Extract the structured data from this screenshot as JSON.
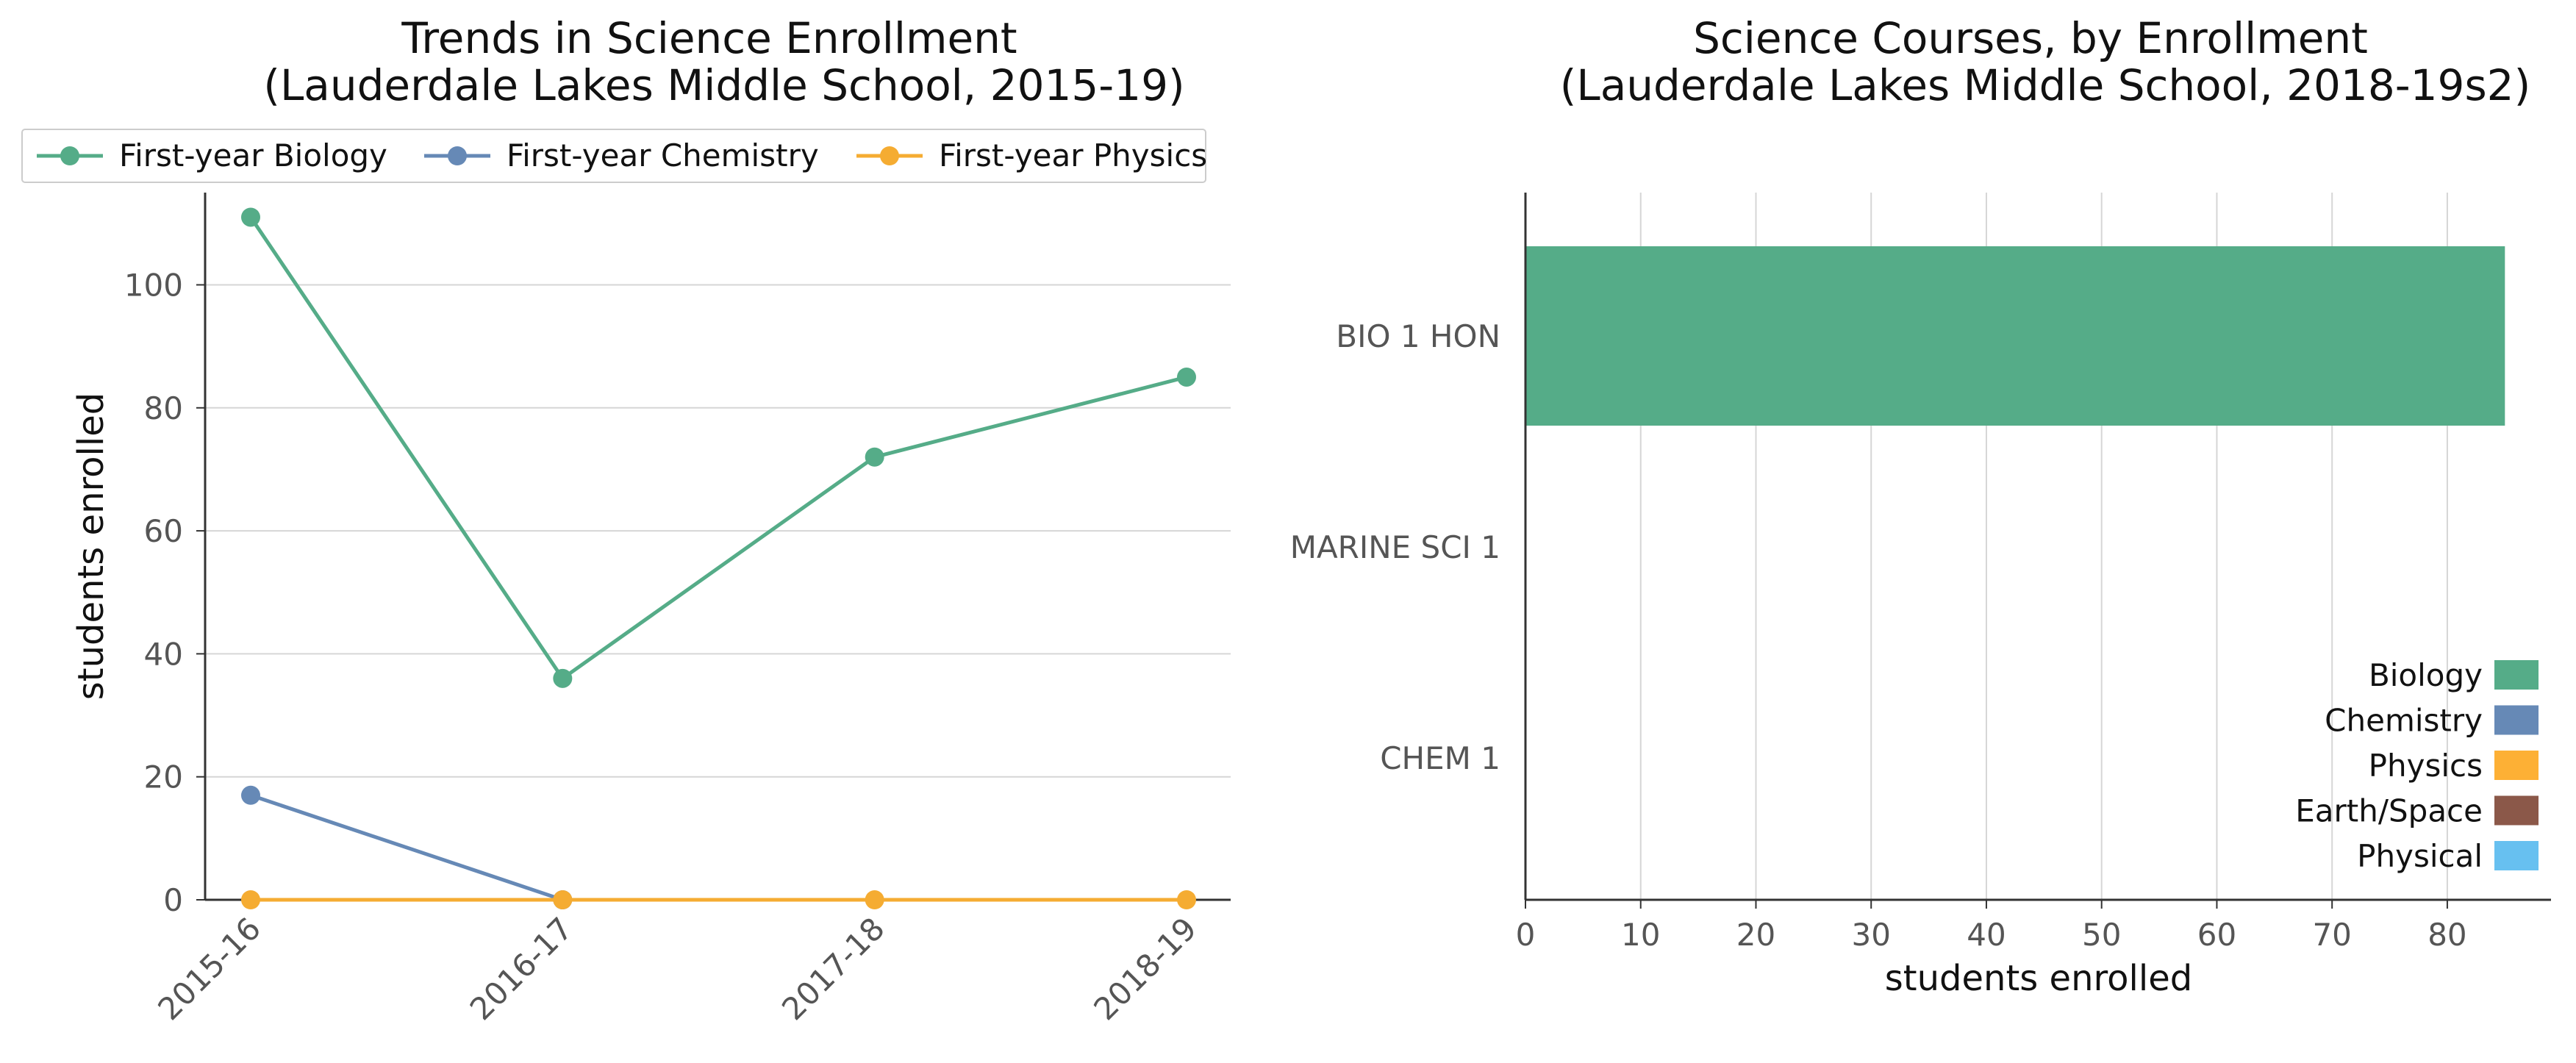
{
  "chart_data": [
    {
      "type": "line",
      "title": "Trends in Science Enrollment",
      "subtitle": "(Lauderdale Lakes Middle School, 2015-19)",
      "xlabel": "",
      "ylabel": "students enrolled",
      "categories": [
        "2015-16",
        "2016-17",
        "2017-18",
        "2018-19"
      ],
      "ylim": [
        0,
        115
      ],
      "yticks": [
        0,
        20,
        40,
        60,
        80,
        100
      ],
      "grid": "horizontal",
      "legend_position": "top",
      "series": [
        {
          "name": "First-year Biology",
          "color": "#55ac88",
          "values": [
            111,
            36,
            72,
            85
          ]
        },
        {
          "name": "First-year Chemistry",
          "color": "#6689b6",
          "values": [
            17,
            0,
            null,
            null
          ]
        },
        {
          "name": "First-year Physics",
          "color": "#f5ac32",
          "values": [
            0,
            0,
            0,
            0
          ]
        }
      ]
    },
    {
      "type": "bar",
      "orientation": "horizontal",
      "title": "Science Courses, by Enrollment",
      "subtitle": "(Lauderdale Lakes Middle School, 2018-19s2)",
      "xlabel": "students enrolled",
      "ylabel": "",
      "categories": [
        "BIO 1 HON",
        "MARINE SCI 1",
        "CHEM 1"
      ],
      "values": [
        85,
        0,
        0
      ],
      "bar_colors": [
        "#55ac88",
        "#55ac88",
        "#6689b6"
      ],
      "xlim": [
        0,
        89
      ],
      "xticks": [
        0,
        10,
        20,
        30,
        40,
        50,
        60,
        70,
        80
      ],
      "grid": "vertical",
      "legend_position": "lower-right",
      "legend": [
        {
          "label": "Biology",
          "color": "#55ac88"
        },
        {
          "label": "Chemistry",
          "color": "#6689b6"
        },
        {
          "label": "Physics",
          "color": "#fdb035"
        },
        {
          "label": "Earth/Space",
          "color": "#8b5849"
        },
        {
          "label": "Physical",
          "color": "#67c0f0"
        }
      ]
    }
  ]
}
